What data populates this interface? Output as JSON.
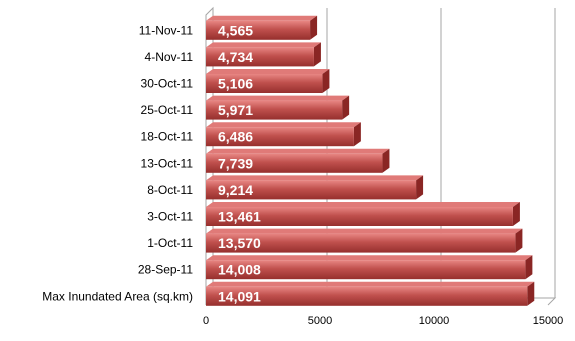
{
  "chart_data": {
    "type": "bar",
    "orientation": "horizontal",
    "style": "3d",
    "categories": [
      "11-Nov-11",
      "4-Nov-11",
      "30-Oct-11",
      "25-Oct-11",
      "18-Oct-11",
      "13-Oct-11",
      "8-Oct-11",
      "3-Oct-11",
      "1-Oct-11",
      "28-Sep-11",
      "Max Inundated Area (sq.km)"
    ],
    "values": [
      4565,
      4734,
      5106,
      5971,
      6486,
      7739,
      9214,
      13461,
      13570,
      14008,
      14091
    ],
    "value_labels": [
      "4,565",
      "4,734",
      "5,106",
      "5,971",
      "6,486",
      "7,739",
      "9,214",
      "13,461",
      "13,570",
      "14,008",
      "14,091"
    ],
    "xticks": [
      0,
      5000,
      10000,
      15000
    ],
    "xtick_labels": [
      "0",
      "5000",
      "10000",
      "15000"
    ],
    "xlim": [
      0,
      15000
    ],
    "grid": "vertical major",
    "legend": "none",
    "colors": {
      "bar": "#c0504d",
      "bar_light": "#e07a78",
      "bar_dark": "#8a2624",
      "label": "#ffffff",
      "grid": "#a6a6a6"
    }
  }
}
